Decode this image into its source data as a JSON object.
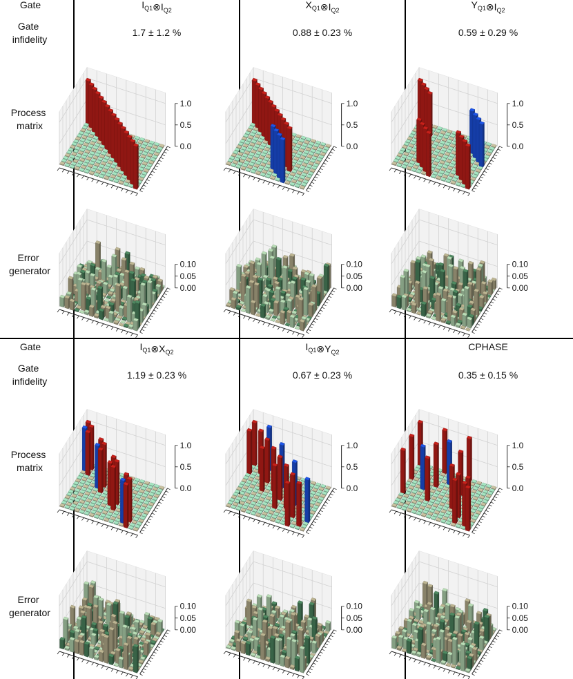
{
  "table": {
    "row_labels": {
      "gate": "Gate",
      "infidelity": [
        "Gate",
        "infidelity"
      ],
      "process": [
        "Process",
        "matrix"
      ],
      "error": [
        "Error",
        "generator"
      ]
    },
    "gates": [
      {
        "name_parts": [
          [
            "I",
            "Q1"
          ],
          [
            "⊗",
            ""
          ],
          [
            "I",
            "Q2"
          ]
        ],
        "infidelity": "1.7 ± 1.2 %"
      },
      {
        "name_parts": [
          [
            "X",
            "Q1"
          ],
          [
            "⊗",
            ""
          ],
          [
            "I",
            "Q2"
          ]
        ],
        "infidelity": "0.88 ± 0.23 %"
      },
      {
        "name_parts": [
          [
            "Y",
            "Q1"
          ],
          [
            "⊗",
            ""
          ],
          [
            "I",
            "Q2"
          ]
        ],
        "infidelity": "0.59 ± 0.29 %"
      },
      {
        "name_parts": [
          [
            "I",
            "Q1"
          ],
          [
            "⊗",
            ""
          ],
          [
            "X",
            "Q2"
          ]
        ],
        "infidelity": "1.19 ± 0.23 %"
      },
      {
        "name_parts": [
          [
            "I",
            "Q1"
          ],
          [
            "⊗",
            ""
          ],
          [
            "Y",
            "Q2"
          ]
        ],
        "infidelity": "0.67 ± 0.23 %"
      },
      {
        "name_parts": [
          [
            "CPHASE",
            ""
          ]
        ],
        "infidelity": "0.35 ± 0.15 %"
      }
    ]
  },
  "chart_data": [
    {
      "type": "bar3d",
      "kind": "process-matrix",
      "gate": "IQ1⊗IQ2",
      "zlim": [
        0,
        1.0
      ],
      "zticks": [
        "0.0",
        "0.5",
        "1.0"
      ],
      "bars": [
        {
          "row": 0,
          "col": 0,
          "value": 1.0,
          "sign": "+"
        },
        {
          "row": 1,
          "col": 1,
          "value": 1.0,
          "sign": "+"
        },
        {
          "row": 2,
          "col": 2,
          "value": 1.0,
          "sign": "+"
        },
        {
          "row": 3,
          "col": 3,
          "value": 1.0,
          "sign": "+"
        },
        {
          "row": 4,
          "col": 4,
          "value": 1.0,
          "sign": "+"
        },
        {
          "row": 5,
          "col": 5,
          "value": 1.0,
          "sign": "+"
        },
        {
          "row": 6,
          "col": 6,
          "value": 1.0,
          "sign": "+"
        },
        {
          "row": 7,
          "col": 7,
          "value": 1.0,
          "sign": "+"
        },
        {
          "row": 8,
          "col": 8,
          "value": 1.0,
          "sign": "+"
        },
        {
          "row": 9,
          "col": 9,
          "value": 1.0,
          "sign": "+"
        },
        {
          "row": 10,
          "col": 10,
          "value": 1.0,
          "sign": "+"
        },
        {
          "row": 11,
          "col": 11,
          "value": 1.0,
          "sign": "+"
        },
        {
          "row": 12,
          "col": 12,
          "value": 1.0,
          "sign": "+"
        },
        {
          "row": 13,
          "col": 13,
          "value": 1.0,
          "sign": "+"
        },
        {
          "row": 14,
          "col": 14,
          "value": 1.0,
          "sign": "+"
        },
        {
          "row": 15,
          "col": 15,
          "value": 1.0,
          "sign": "+"
        }
      ]
    },
    {
      "type": "bar3d",
      "kind": "process-matrix",
      "gate": "XQ1⊗IQ2",
      "zlim": [
        0,
        1.0
      ],
      "zticks": [
        "0.0",
        "0.5",
        "1.0"
      ],
      "bars": [
        {
          "row": 0,
          "col": 0,
          "value": 1.0,
          "sign": "+"
        },
        {
          "row": 1,
          "col": 1,
          "value": 1.0,
          "sign": "+"
        },
        {
          "row": 2,
          "col": 2,
          "value": 1.0,
          "sign": "+"
        },
        {
          "row": 3,
          "col": 3,
          "value": 1.0,
          "sign": "+"
        },
        {
          "row": 4,
          "col": 4,
          "value": 1.0,
          "sign": "+"
        },
        {
          "row": 5,
          "col": 5,
          "value": 1.0,
          "sign": "+"
        },
        {
          "row": 6,
          "col": 6,
          "value": 1.0,
          "sign": "+"
        },
        {
          "row": 7,
          "col": 7,
          "value": 1.0,
          "sign": "+"
        },
        {
          "row": 8,
          "col": 8,
          "value": 1.0,
          "sign": "+"
        },
        {
          "row": 9,
          "col": 9,
          "value": 1.0,
          "sign": "+"
        },
        {
          "row": 10,
          "col": 10,
          "value": 1.0,
          "sign": "+"
        },
        {
          "row": 11,
          "col": 11,
          "value": 1.0,
          "sign": "+"
        },
        {
          "row": 8,
          "col": 12,
          "value": 1.0,
          "sign": "-"
        },
        {
          "row": 9,
          "col": 13,
          "value": 1.0,
          "sign": "-"
        },
        {
          "row": 10,
          "col": 14,
          "value": 1.0,
          "sign": "-"
        },
        {
          "row": 11,
          "col": 15,
          "value": 1.0,
          "sign": "-"
        }
      ]
    },
    {
      "type": "bar3d",
      "kind": "process-matrix",
      "gate": "YQ1⊗IQ2",
      "zlim": [
        0,
        1.0
      ],
      "zticks": [
        "0.0",
        "0.5",
        "1.0"
      ],
      "bars": [
        {
          "row": 0,
          "col": 0,
          "value": 1.0,
          "sign": "+"
        },
        {
          "row": 1,
          "col": 1,
          "value": 1.0,
          "sign": "+"
        },
        {
          "row": 2,
          "col": 2,
          "value": 1.0,
          "sign": "+"
        },
        {
          "row": 3,
          "col": 3,
          "value": 1.0,
          "sign": "+"
        },
        {
          "row": 12,
          "col": 4,
          "value": 1.0,
          "sign": "-"
        },
        {
          "row": 13,
          "col": 5,
          "value": 1.0,
          "sign": "-"
        },
        {
          "row": 14,
          "col": 6,
          "value": 1.0,
          "sign": "-"
        },
        {
          "row": 15,
          "col": 7,
          "value": 1.0,
          "sign": "-"
        },
        {
          "row": 4,
          "col": 12,
          "value": 1.0,
          "sign": "+"
        },
        {
          "row": 5,
          "col": 13,
          "value": 1.0,
          "sign": "+"
        },
        {
          "row": 6,
          "col": 14,
          "value": 1.0,
          "sign": "+"
        },
        {
          "row": 7,
          "col": 15,
          "value": 1.0,
          "sign": "+"
        },
        {
          "row": 12,
          "col": 12,
          "value": 1.0,
          "sign": "+"
        },
        {
          "row": 13,
          "col": 13,
          "value": 1.0,
          "sign": "+"
        },
        {
          "row": 14,
          "col": 14,
          "value": 1.0,
          "sign": "+"
        },
        {
          "row": 15,
          "col": 15,
          "value": 1.0,
          "sign": "+"
        }
      ]
    },
    {
      "type": "bar3d",
      "kind": "process-matrix",
      "gate": "IQ1⊗XQ2",
      "zlim": [
        0,
        1.0
      ],
      "zticks": [
        "0.0",
        "0.5",
        "1.0"
      ],
      "bars": [
        {
          "row": 0,
          "col": 0,
          "value": 1.0,
          "sign": "+"
        },
        {
          "row": 1,
          "col": 1,
          "value": 1.0,
          "sign": "+"
        },
        {
          "row": 0,
          "col": 2,
          "value": 1.0,
          "sign": "-"
        },
        {
          "row": 1,
          "col": 3,
          "value": 1.0,
          "sign": "+"
        },
        {
          "row": 4,
          "col": 4,
          "value": 1.0,
          "sign": "+"
        },
        {
          "row": 5,
          "col": 5,
          "value": 1.0,
          "sign": "+"
        },
        {
          "row": 4,
          "col": 6,
          "value": 1.0,
          "sign": "-"
        },
        {
          "row": 5,
          "col": 7,
          "value": 1.0,
          "sign": "+"
        },
        {
          "row": 8,
          "col": 8,
          "value": 1.0,
          "sign": "+"
        },
        {
          "row": 9,
          "col": 9,
          "value": 1.0,
          "sign": "+"
        },
        {
          "row": 8,
          "col": 10,
          "value": 1.0,
          "sign": "+"
        },
        {
          "row": 9,
          "col": 11,
          "value": 1.0,
          "sign": "+"
        },
        {
          "row": 12,
          "col": 12,
          "value": 1.0,
          "sign": "+"
        },
        {
          "row": 13,
          "col": 13,
          "value": 1.0,
          "sign": "+"
        },
        {
          "row": 12,
          "col": 14,
          "value": 1.0,
          "sign": "-"
        },
        {
          "row": 13,
          "col": 15,
          "value": 1.0,
          "sign": "+"
        }
      ]
    },
    {
      "type": "bar3d",
      "kind": "process-matrix",
      "gate": "IQ1⊗YQ2",
      "zlim": [
        0,
        1.0
      ],
      "zticks": [
        "0.0",
        "0.5",
        "1.0"
      ],
      "bars": [
        {
          "row": 0,
          "col": 0,
          "value": 1.0,
          "sign": "+"
        },
        {
          "row": 3,
          "col": 0,
          "value": 1.0,
          "sign": "-"
        },
        {
          "row": 0,
          "col": 3,
          "value": 1.0,
          "sign": "+"
        },
        {
          "row": 2,
          "col": 2,
          "value": 1.0,
          "sign": "+"
        },
        {
          "row": 4,
          "col": 4,
          "value": 1.0,
          "sign": "+"
        },
        {
          "row": 7,
          "col": 4,
          "value": 1.0,
          "sign": "-"
        },
        {
          "row": 4,
          "col": 7,
          "value": 1.0,
          "sign": "+"
        },
        {
          "row": 6,
          "col": 6,
          "value": 1.0,
          "sign": "+"
        },
        {
          "row": 8,
          "col": 8,
          "value": 1.0,
          "sign": "+"
        },
        {
          "row": 11,
          "col": 8,
          "value": 1.0,
          "sign": "-"
        },
        {
          "row": 8,
          "col": 11,
          "value": 1.0,
          "sign": "+"
        },
        {
          "row": 10,
          "col": 10,
          "value": 1.0,
          "sign": "+"
        },
        {
          "row": 12,
          "col": 12,
          "value": 1.0,
          "sign": "+"
        },
        {
          "row": 15,
          "col": 12,
          "value": 1.0,
          "sign": "-"
        },
        {
          "row": 12,
          "col": 15,
          "value": 1.0,
          "sign": "+"
        },
        {
          "row": 14,
          "col": 14,
          "value": 1.0,
          "sign": "+"
        }
      ]
    },
    {
      "type": "bar3d",
      "kind": "process-matrix",
      "gate": "CPHASE",
      "zlim": [
        0,
        1.0
      ],
      "zticks": [
        "0.0",
        "0.5",
        "1.0"
      ],
      "bars": [
        {
          "row": 0,
          "col": 0,
          "value": 1.0,
          "sign": "+"
        },
        {
          "row": 5,
          "col": 0,
          "value": 1.0,
          "sign": "+"
        },
        {
          "row": 10,
          "col": 0,
          "value": 1.0,
          "sign": "+"
        },
        {
          "row": 0,
          "col": 5,
          "value": 1.0,
          "sign": "+"
        },
        {
          "row": 5,
          "col": 5,
          "value": 1.0,
          "sign": "+"
        },
        {
          "row": 10,
          "col": 5,
          "value": 1.0,
          "sign": "+"
        },
        {
          "row": 3,
          "col": 7,
          "value": 1.0,
          "sign": "-"
        },
        {
          "row": 7,
          "col": 3,
          "value": 1.0,
          "sign": "-"
        },
        {
          "row": 0,
          "col": 10,
          "value": 1.0,
          "sign": "+"
        },
        {
          "row": 5,
          "col": 10,
          "value": 1.0,
          "sign": "+"
        },
        {
          "row": 10,
          "col": 10,
          "value": 1.0,
          "sign": "+"
        },
        {
          "row": 12,
          "col": 12,
          "value": 1.0,
          "sign": "+"
        },
        {
          "row": 14,
          "col": 12,
          "value": 1.0,
          "sign": "+"
        },
        {
          "row": 12,
          "col": 14,
          "value": 1.0,
          "sign": "+"
        },
        {
          "row": 15,
          "col": 15,
          "value": 1.0,
          "sign": "+"
        },
        {
          "row": 14,
          "col": 14,
          "value": 1.0,
          "sign": "+"
        }
      ]
    },
    {
      "type": "bar3d",
      "kind": "error-generator",
      "gate": "IQ1⊗IQ2",
      "zlim": [
        0,
        0.1
      ],
      "zticks": [
        "0.00",
        "0.05",
        "0.10"
      ],
      "seed": 11
    },
    {
      "type": "bar3d",
      "kind": "error-generator",
      "gate": "XQ1⊗IQ2",
      "zlim": [
        0,
        0.1
      ],
      "zticks": [
        "0.00",
        "0.05",
        "0.10"
      ],
      "seed": 23
    },
    {
      "type": "bar3d",
      "kind": "error-generator",
      "gate": "YQ1⊗IQ2",
      "zlim": [
        0,
        0.1
      ],
      "zticks": [
        "0.00",
        "0.05",
        "0.10"
      ],
      "seed": 37
    },
    {
      "type": "bar3d",
      "kind": "error-generator",
      "gate": "IQ1⊗XQ2",
      "zlim": [
        0,
        0.1
      ],
      "zticks": [
        "0.00",
        "0.05",
        "0.10"
      ],
      "seed": 41
    },
    {
      "type": "bar3d",
      "kind": "error-generator",
      "gate": "IQ1⊗YQ2",
      "zlim": [
        0,
        0.1
      ],
      "zticks": [
        "0.00",
        "0.05",
        "0.10"
      ],
      "seed": 53
    },
    {
      "type": "bar3d",
      "kind": "error-generator",
      "gate": "CPHASE",
      "zlim": [
        0,
        0.1
      ],
      "zticks": [
        "0.00",
        "0.05",
        "0.10"
      ],
      "seed": 67
    }
  ],
  "colors": {
    "positive_bar": "#c8201a",
    "negative_bar": "#1d55e8",
    "floor_a": "#a6e6c2",
    "floor_b": "#c9c2a0",
    "error_light": "#b9ddb6",
    "error_dark": "#4f8a62",
    "error_tan": "#bdb592"
  }
}
